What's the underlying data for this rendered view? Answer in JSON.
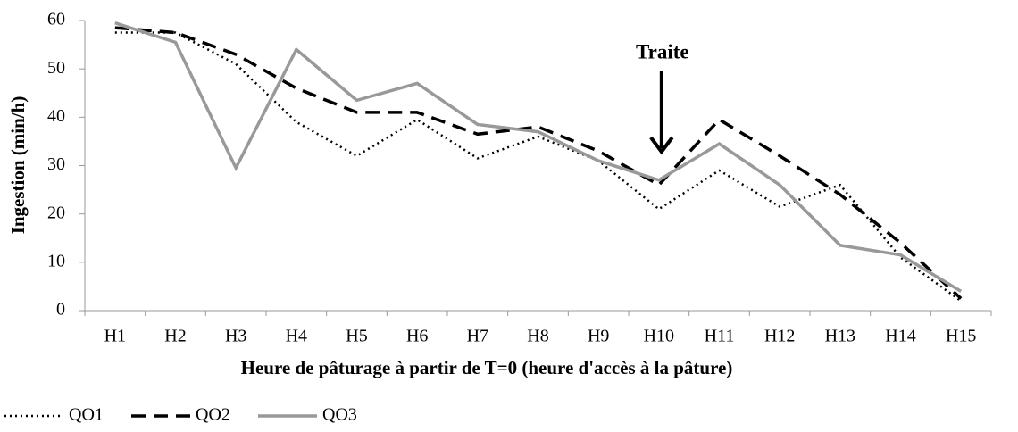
{
  "chart_data": {
    "type": "line",
    "xlabel": "Heure de pâturage à partir de T=0 (heure d'accès à la pâture)",
    "ylabel": "Ingestion (min/h)",
    "categories": [
      "H1",
      "H2",
      "H3",
      "H4",
      "H5",
      "H6",
      "H7",
      "H8",
      "H9",
      "H10",
      "H11",
      "H12",
      "H13",
      "H14",
      "H15"
    ],
    "series": [
      {
        "name": "QO1",
        "color": "#000000",
        "style": "dotted",
        "values": [
          57.5,
          57.5,
          51,
          39,
          32,
          39.5,
          31.5,
          36,
          31,
          21,
          29,
          21.5,
          26,
          11,
          2
        ]
      },
      {
        "name": "QO2",
        "color": "#000000",
        "style": "dashed",
        "values": [
          58.5,
          57.5,
          53,
          46,
          41,
          41,
          36.5,
          38,
          33,
          26,
          39.5,
          32,
          24,
          14,
          2.5
        ]
      },
      {
        "name": "QO3",
        "color": "#999999",
        "style": "solid",
        "values": [
          59.5,
          55.5,
          29.5,
          54,
          43.5,
          47,
          38.5,
          37,
          31,
          27,
          34.5,
          26,
          13.5,
          11.5,
          4
        ]
      }
    ],
    "ylim": [
      0,
      60
    ],
    "yticks": [
      0,
      10,
      20,
      30,
      40,
      50,
      60
    ],
    "annotations": [
      {
        "text": "Traite",
        "x": "H10"
      }
    ],
    "legend": "bottom-left"
  }
}
